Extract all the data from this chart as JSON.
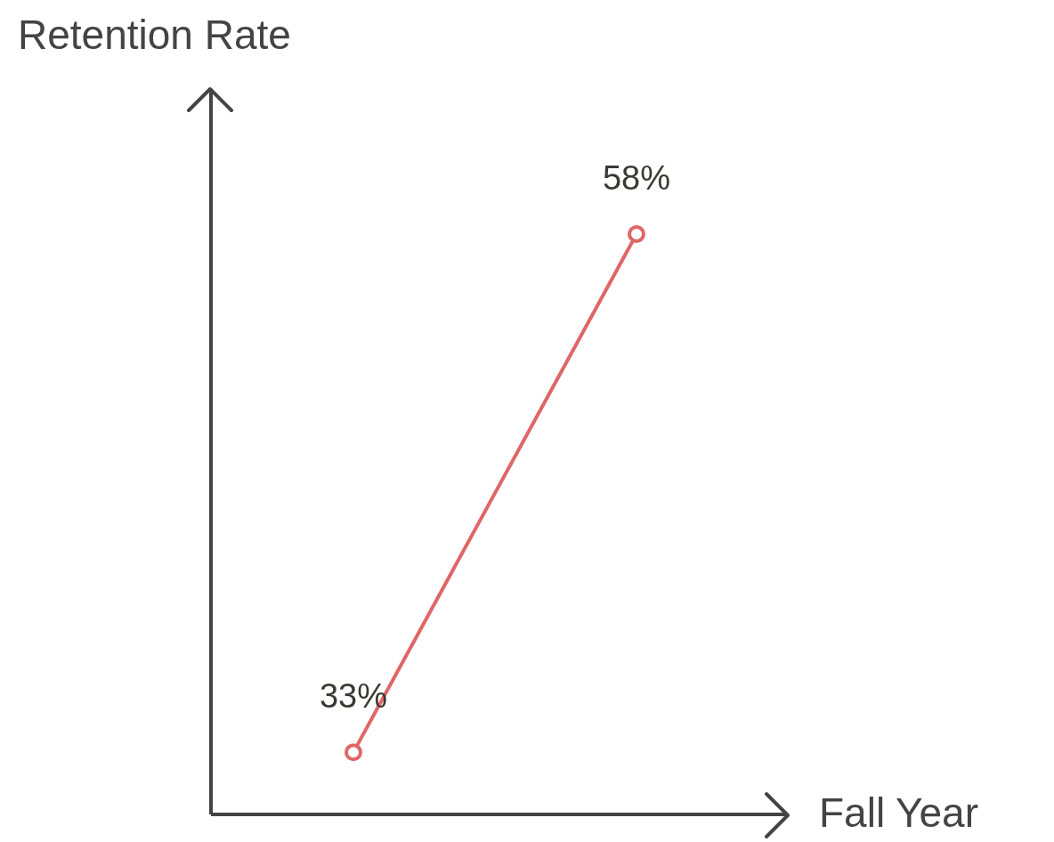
{
  "chart_data": {
    "type": "line",
    "xlabel": "Fall Year",
    "ylabel": "Retention Rate",
    "categories": [
      null,
      null
    ],
    "series": [
      {
        "color": "#e06666",
        "values": [
          33,
          58
        ],
        "value_labels": [
          "33%",
          "58%"
        ]
      }
    ],
    "ylim": [
      30,
      65
    ],
    "marker": "circle",
    "grid": false,
    "legend": false
  }
}
